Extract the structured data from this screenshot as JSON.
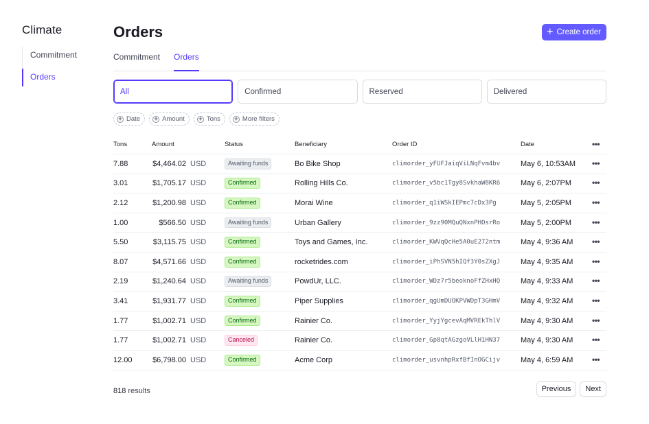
{
  "sidebar": {
    "title": "Climate",
    "items": [
      {
        "label": "Commitment",
        "active": false
      },
      {
        "label": "Orders",
        "active": true
      }
    ]
  },
  "header": {
    "title": "Orders",
    "create_button": "Create order"
  },
  "tabs": [
    {
      "label": "Commitment",
      "active": false
    },
    {
      "label": "Orders",
      "active": true
    }
  ],
  "status_filters": [
    {
      "label": "All",
      "active": true
    },
    {
      "label": "Confirmed",
      "active": false
    },
    {
      "label": "Reserved",
      "active": false
    },
    {
      "label": "Delivered",
      "active": false
    }
  ],
  "filter_chips": [
    "Date",
    "Amount",
    "Tons",
    "More filters"
  ],
  "table": {
    "columns": {
      "tons": "Tons",
      "amount": "Amount",
      "status": "Status",
      "beneficiary": "Beneficiary",
      "order_id": "Order ID",
      "date": "Date"
    },
    "rows": [
      {
        "tons": "7.88",
        "amount": "$4,464.02",
        "currency": "USD",
        "status": "Awaiting funds",
        "status_kind": "awaiting",
        "beneficiary": "Bo Bike Shop",
        "order_id": "climorder_yFUFJaiqViLNqFvm4bv",
        "date": "May 6, 10:53AM"
      },
      {
        "tons": "3.01",
        "amount": "$1,705.17",
        "currency": "USD",
        "status": "Confirmed",
        "status_kind": "confirmed",
        "beneficiary": "Rolling Hills Co.",
        "order_id": "climorder_v5bc1Tgy8SvkhaW8KR6",
        "date": "May 6, 2:07PM"
      },
      {
        "tons": "2.12",
        "amount": "$1,200.98",
        "currency": "USD",
        "status": "Confirmed",
        "status_kind": "confirmed",
        "beneficiary": "Morai Wine",
        "order_id": "climorder_q1iWSkIEPmc7cDx3Pg",
        "date": "May 5, 2:05PM"
      },
      {
        "tons": "1.00",
        "amount": "$566.50",
        "currency": "USD",
        "status": "Awaiting funds",
        "status_kind": "awaiting",
        "beneficiary": "Urban Gallery",
        "order_id": "climorder_9zz90MQuQNxnPHOsrRo",
        "date": "May 5, 2:00PM"
      },
      {
        "tons": "5.50",
        "amount": "$3,115.75",
        "currency": "USD",
        "status": "Confirmed",
        "status_kind": "confirmed",
        "beneficiary": "Toys and Games, Inc.",
        "order_id": "climorder_KWVqQcHe5A0uE272ntm",
        "date": "May 4, 9:36 AM"
      },
      {
        "tons": "8.07",
        "amount": "$4,571.66",
        "currency": "USD",
        "status": "Confirmed",
        "status_kind": "confirmed",
        "beneficiary": "rocketrides.com",
        "order_id": "climorder_iPhSVN5hIQf3Y0sZXgJ",
        "date": "May 4, 9:35 AM"
      },
      {
        "tons": "2.19",
        "amount": "$1,240.64",
        "currency": "USD",
        "status": "Awaiting funds",
        "status_kind": "awaiting",
        "beneficiary": "PowdUr, LLC.",
        "order_id": "climorder_WDz7r5beoknoFfZHxHQ",
        "date": "May 4, 9:33 AM"
      },
      {
        "tons": "3.41",
        "amount": "$1,931.77",
        "currency": "USD",
        "status": "Confirmed",
        "status_kind": "confirmed",
        "beneficiary": "Piper Supplies",
        "order_id": "climorder_qgUmDUOKPVWDpT3GHmV",
        "date": "May 4, 9:32 AM"
      },
      {
        "tons": "1.77",
        "amount": "$1,002.71",
        "currency": "USD",
        "status": "Confirmed",
        "status_kind": "confirmed",
        "beneficiary": "Rainier Co.",
        "order_id": "climorder_YyjYgcevAqMVREkThlV",
        "date": "May 4, 9:30 AM"
      },
      {
        "tons": "1.77",
        "amount": "$1,002.71",
        "currency": "USD",
        "status": "Canceled",
        "status_kind": "canceled",
        "beneficiary": "Rainier Co.",
        "order_id": "climorder_Gp8qtAGzgoVLlH1HN37",
        "date": "May 4, 9:30 AM"
      },
      {
        "tons": "12.00",
        "amount": "$6,798.00",
        "currency": "USD",
        "status": "Confirmed",
        "status_kind": "confirmed",
        "beneficiary": "Acme Corp",
        "order_id": "climorder_usvnhpRxfBfInOGCijv",
        "date": "May 4, 6:59 AM"
      }
    ]
  },
  "footer": {
    "results_count": "818",
    "results_label": "results",
    "previous": "Previous",
    "next": "Next"
  },
  "icons": {
    "create": "plus-icon",
    "filter_chip": "plus-circle-icon",
    "row_menu": "more-horizontal-icon"
  },
  "colors": {
    "accent": "#533afd",
    "primary_button": "#635bff",
    "confirmed_bg": "#d7f7c2",
    "confirmed_text": "#05690d",
    "awaiting_bg": "#ebeef1",
    "canceled_bg": "#ffe7f2",
    "canceled_text": "#b3093c"
  }
}
